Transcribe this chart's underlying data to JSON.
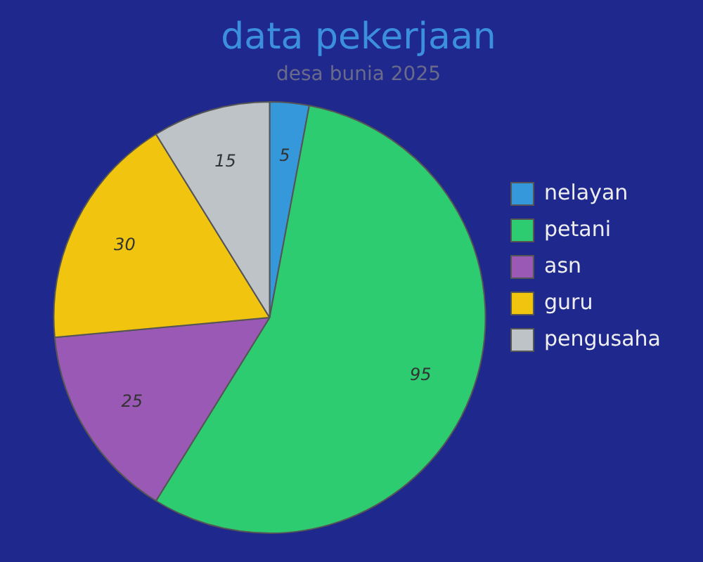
{
  "chart_data": {
    "type": "pie",
    "title": "data pekerjaan",
    "subtitle": "desa bunia 2025",
    "categories": [
      "nelayan",
      "petani",
      "asn",
      "guru",
      "pengusaha"
    ],
    "values": [
      5,
      95,
      25,
      30,
      15
    ],
    "colors": [
      "#3498db",
      "#2ecc71",
      "#9b59b6",
      "#f1c40f",
      "#bdc3c7"
    ],
    "data_labels": true,
    "legend": "right"
  }
}
